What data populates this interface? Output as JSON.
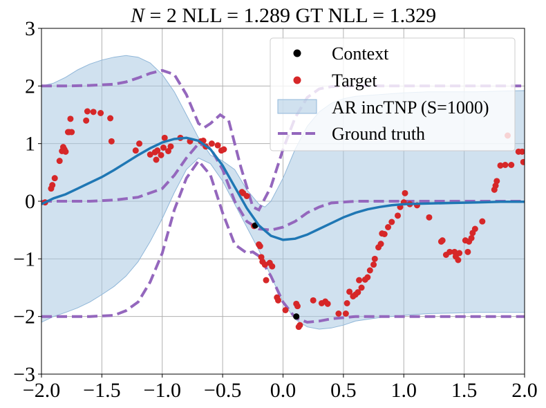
{
  "chart_data": {
    "type": "line",
    "title": {
      "prefix": "N",
      "equals": " = 2 NLL = 1.289 GT NLL = 1.329"
    },
    "xlabel": "",
    "ylabel": "",
    "xlim": [
      -2.0,
      2.0
    ],
    "ylim": [
      -3,
      3
    ],
    "xticks": [
      -2.0,
      -1.5,
      -1.0,
      -0.5,
      0.0,
      0.5,
      1.0,
      1.5,
      2.0
    ],
    "xtick_labels": [
      "−2.0",
      "−1.5",
      "−1.0",
      "−0.5",
      "0.0",
      "0.5",
      "1.0",
      "1.5",
      "2.0"
    ],
    "yticks": [
      -3,
      -2,
      -1,
      0,
      1,
      2,
      3
    ],
    "ytick_labels": [
      "−3",
      "−2",
      "−1",
      "0",
      "1",
      "2",
      "3"
    ],
    "grid": true,
    "legend_position": "top-right",
    "legend": [
      "Context",
      "Target",
      "AR incTNP (S=1000)",
      "Ground truth"
    ],
    "colors": {
      "context": "#000000",
      "target": "#d62728",
      "band_fill": "#aac8e2",
      "band_edge": "#8fb6d8",
      "mean": "#1f77b4",
      "ground_truth": "#9467bd",
      "grid": "#b0b0b0"
    },
    "context_points": [
      {
        "x": -0.23,
        "y": -0.42
      },
      {
        "x": 0.11,
        "y": -2.0
      }
    ],
    "target_points": [
      {
        "x": -1.97,
        "y": -0.02
      },
      {
        "x": -1.92,
        "y": 0.22
      },
      {
        "x": -1.91,
        "y": 0.28
      },
      {
        "x": -1.89,
        "y": 0.4
      },
      {
        "x": -1.85,
        "y": 0.7
      },
      {
        "x": -1.83,
        "y": 0.87
      },
      {
        "x": -1.82,
        "y": 0.94
      },
      {
        "x": -1.81,
        "y": 0.9
      },
      {
        "x": -1.8,
        "y": 0.86
      },
      {
        "x": -1.78,
        "y": 1.2
      },
      {
        "x": -1.77,
        "y": 1.2
      },
      {
        "x": -1.76,
        "y": 1.43
      },
      {
        "x": -1.75,
        "y": 1.2
      },
      {
        "x": -1.63,
        "y": 1.4
      },
      {
        "x": -1.62,
        "y": 1.56
      },
      {
        "x": -1.57,
        "y": 1.55
      },
      {
        "x": -1.51,
        "y": 1.53
      },
      {
        "x": -1.43,
        "y": 1.44
      },
      {
        "x": -1.42,
        "y": 1.04
      },
      {
        "x": -1.22,
        "y": 0.88
      },
      {
        "x": -1.19,
        "y": 1.0
      },
      {
        "x": -1.1,
        "y": 0.81
      },
      {
        "x": -1.06,
        "y": 0.85
      },
      {
        "x": -1.05,
        "y": 0.72
      },
      {
        "x": -1.04,
        "y": 0.88
      },
      {
        "x": -1.01,
        "y": 0.8
      },
      {
        "x": -0.99,
        "y": 0.93
      },
      {
        "x": -0.98,
        "y": 1.1
      },
      {
        "x": -0.95,
        "y": 0.87
      },
      {
        "x": -0.93,
        "y": 0.95
      },
      {
        "x": -0.85,
        "y": 1.1
      },
      {
        "x": -0.77,
        "y": 1.04
      },
      {
        "x": -0.68,
        "y": 1.04
      },
      {
        "x": -0.66,
        "y": 1.05
      },
      {
        "x": -0.64,
        "y": 0.95
      },
      {
        "x": -0.59,
        "y": 1.0
      },
      {
        "x": -0.54,
        "y": 0.97
      },
      {
        "x": -0.51,
        "y": 0.88
      },
      {
        "x": -0.49,
        "y": 0.9
      },
      {
        "x": -0.34,
        "y": 0.16
      },
      {
        "x": -0.33,
        "y": 0.14
      },
      {
        "x": -0.3,
        "y": 0.09
      },
      {
        "x": -0.24,
        "y": -0.43
      },
      {
        "x": -0.2,
        "y": -0.75
      },
      {
        "x": -0.19,
        "y": -0.78
      },
      {
        "x": -0.18,
        "y": -0.97
      },
      {
        "x": -0.17,
        "y": -1.05
      },
      {
        "x": -0.15,
        "y": -1.1
      },
      {
        "x": -0.14,
        "y": -1.37
      },
      {
        "x": -0.11,
        "y": -1.07
      },
      {
        "x": -0.09,
        "y": -1.13
      },
      {
        "x": -0.05,
        "y": -1.67
      },
      {
        "x": -0.04,
        "y": -1.72
      },
      {
        "x": 0.02,
        "y": -1.89
      },
      {
        "x": 0.11,
        "y": -1.78
      },
      {
        "x": 0.12,
        "y": -1.82
      },
      {
        "x": 0.13,
        "y": -2.18
      },
      {
        "x": 0.14,
        "y": -2.15
      },
      {
        "x": 0.25,
        "y": -1.72
      },
      {
        "x": 0.32,
        "y": -1.77
      },
      {
        "x": 0.35,
        "y": -1.74
      },
      {
        "x": 0.37,
        "y": -1.78
      },
      {
        "x": 0.46,
        "y": -1.95
      },
      {
        "x": 0.52,
        "y": -1.95
      },
      {
        "x": 0.53,
        "y": -1.77
      },
      {
        "x": 0.55,
        "y": -1.57
      },
      {
        "x": 0.58,
        "y": -1.65
      },
      {
        "x": 0.6,
        "y": -1.62
      },
      {
        "x": 0.62,
        "y": -1.58
      },
      {
        "x": 0.63,
        "y": -1.37
      },
      {
        "x": 0.65,
        "y": -1.5
      },
      {
        "x": 0.68,
        "y": -1.36
      },
      {
        "x": 0.7,
        "y": -1.32
      },
      {
        "x": 0.72,
        "y": -1.2
      },
      {
        "x": 0.75,
        "y": -1.1
      },
      {
        "x": 0.76,
        "y": -1.0
      },
      {
        "x": 0.79,
        "y": -0.8
      },
      {
        "x": 0.81,
        "y": -0.74
      },
      {
        "x": 0.82,
        "y": -0.56
      },
      {
        "x": 0.84,
        "y": -0.57
      },
      {
        "x": 0.87,
        "y": -0.45
      },
      {
        "x": 0.9,
        "y": -0.36
      },
      {
        "x": 0.95,
        "y": -0.25
      },
      {
        "x": 0.97,
        "y": -0.1
      },
      {
        "x": 1.0,
        "y": -0.02
      },
      {
        "x": 1.01,
        "y": 0.14
      },
      {
        "x": 1.05,
        "y": -0.05
      },
      {
        "x": 1.11,
        "y": -0.07
      },
      {
        "x": 1.21,
        "y": -0.28
      },
      {
        "x": 1.31,
        "y": -0.7
      },
      {
        "x": 1.32,
        "y": -0.68
      },
      {
        "x": 1.35,
        "y": -0.93
      },
      {
        "x": 1.38,
        "y": -0.88
      },
      {
        "x": 1.42,
        "y": -0.88
      },
      {
        "x": 1.43,
        "y": -0.96
      },
      {
        "x": 1.45,
        "y": -1.02
      },
      {
        "x": 1.46,
        "y": -0.9
      },
      {
        "x": 1.51,
        "y": -0.68
      },
      {
        "x": 1.53,
        "y": -0.88
      },
      {
        "x": 1.54,
        "y": -0.7
      },
      {
        "x": 1.56,
        "y": -0.64
      },
      {
        "x": 1.57,
        "y": -0.55
      },
      {
        "x": 1.59,
        "y": -0.48
      },
      {
        "x": 1.65,
        "y": -0.35
      },
      {
        "x": 1.75,
        "y": 0.2
      },
      {
        "x": 1.76,
        "y": 0.27
      },
      {
        "x": 1.77,
        "y": 0.35
      },
      {
        "x": 1.8,
        "y": 0.62
      },
      {
        "x": 1.84,
        "y": 0.63
      },
      {
        "x": 1.86,
        "y": 1.14
      },
      {
        "x": 1.89,
        "y": 0.63
      },
      {
        "x": 1.95,
        "y": 0.86
      },
      {
        "x": 1.98,
        "y": 0.86
      },
      {
        "x": 1.99,
        "y": 0.68
      }
    ],
    "mean_curve": [
      {
        "x": -2.0,
        "y": -0.05
      },
      {
        "x": -1.9,
        "y": 0.05
      },
      {
        "x": -1.8,
        "y": 0.12
      },
      {
        "x": -1.7,
        "y": 0.22
      },
      {
        "x": -1.6,
        "y": 0.32
      },
      {
        "x": -1.5,
        "y": 0.42
      },
      {
        "x": -1.4,
        "y": 0.54
      },
      {
        "x": -1.3,
        "y": 0.67
      },
      {
        "x": -1.2,
        "y": 0.8
      },
      {
        "x": -1.1,
        "y": 0.92
      },
      {
        "x": -1.0,
        "y": 1.02
      },
      {
        "x": -0.9,
        "y": 1.08
      },
      {
        "x": -0.8,
        "y": 1.1
      },
      {
        "x": -0.7,
        "y": 1.05
      },
      {
        "x": -0.6,
        "y": 0.9
      },
      {
        "x": -0.5,
        "y": 0.62
      },
      {
        "x": -0.4,
        "y": 0.25
      },
      {
        "x": -0.3,
        "y": -0.12
      },
      {
        "x": -0.2,
        "y": -0.42
      },
      {
        "x": -0.1,
        "y": -0.6
      },
      {
        "x": 0.0,
        "y": -0.67
      },
      {
        "x": 0.1,
        "y": -0.65
      },
      {
        "x": 0.2,
        "y": -0.58
      },
      {
        "x": 0.3,
        "y": -0.48
      },
      {
        "x": 0.4,
        "y": -0.38
      },
      {
        "x": 0.5,
        "y": -0.28
      },
      {
        "x": 0.6,
        "y": -0.2
      },
      {
        "x": 0.7,
        "y": -0.14
      },
      {
        "x": 0.8,
        "y": -0.1
      },
      {
        "x": 0.9,
        "y": -0.07
      },
      {
        "x": 1.0,
        "y": -0.05
      },
      {
        "x": 1.2,
        "y": -0.04
      },
      {
        "x": 1.4,
        "y": -0.03
      },
      {
        "x": 1.6,
        "y": -0.02
      },
      {
        "x": 1.8,
        "y": -0.01
      },
      {
        "x": 2.0,
        "y": -0.01
      }
    ],
    "band_upper": [
      {
        "x": -2.0,
        "y": 2.0
      },
      {
        "x": -1.9,
        "y": 2.05
      },
      {
        "x": -1.8,
        "y": 2.15
      },
      {
        "x": -1.7,
        "y": 2.28
      },
      {
        "x": -1.6,
        "y": 2.38
      },
      {
        "x": -1.5,
        "y": 2.45
      },
      {
        "x": -1.4,
        "y": 2.5
      },
      {
        "x": -1.3,
        "y": 2.53
      },
      {
        "x": -1.2,
        "y": 2.5
      },
      {
        "x": -1.1,
        "y": 2.4
      },
      {
        "x": -1.0,
        "y": 2.2
      },
      {
        "x": -0.9,
        "y": 1.9
      },
      {
        "x": -0.8,
        "y": 1.5
      },
      {
        "x": -0.7,
        "y": 1.1
      },
      {
        "x": -0.6,
        "y": 0.8
      },
      {
        "x": -0.5,
        "y": 0.7
      },
      {
        "x": -0.4,
        "y": 0.55
      },
      {
        "x": -0.3,
        "y": 0.2
      },
      {
        "x": -0.2,
        "y": -0.05
      },
      {
        "x": -0.15,
        "y": -0.1
      },
      {
        "x": -0.1,
        "y": 0.0
      },
      {
        "x": 0.0,
        "y": 0.4
      },
      {
        "x": 0.1,
        "y": 0.9
      },
      {
        "x": 0.2,
        "y": 1.3
      },
      {
        "x": 0.3,
        "y": 1.55
      },
      {
        "x": 0.4,
        "y": 1.7
      },
      {
        "x": 0.5,
        "y": 1.78
      },
      {
        "x": 0.6,
        "y": 1.82
      },
      {
        "x": 0.8,
        "y": 1.85
      },
      {
        "x": 1.0,
        "y": 1.88
      },
      {
        "x": 1.2,
        "y": 1.9
      },
      {
        "x": 1.4,
        "y": 1.9
      },
      {
        "x": 1.6,
        "y": 1.9
      },
      {
        "x": 1.8,
        "y": 1.91
      },
      {
        "x": 2.0,
        "y": 1.92
      }
    ],
    "band_lower": [
      {
        "x": -2.0,
        "y": -2.1
      },
      {
        "x": -1.9,
        "y": -2.0
      },
      {
        "x": -1.8,
        "y": -1.93
      },
      {
        "x": -1.7,
        "y": -1.85
      },
      {
        "x": -1.6,
        "y": -1.75
      },
      {
        "x": -1.5,
        "y": -1.62
      },
      {
        "x": -1.4,
        "y": -1.48
      },
      {
        "x": -1.3,
        "y": -1.3
      },
      {
        "x": -1.2,
        "y": -1.05
      },
      {
        "x": -1.1,
        "y": -0.7
      },
      {
        "x": -1.0,
        "y": -0.3
      },
      {
        "x": -0.9,
        "y": 0.15
      },
      {
        "x": -0.8,
        "y": 0.55
      },
      {
        "x": -0.7,
        "y": 0.75
      },
      {
        "x": -0.6,
        "y": 0.65
      },
      {
        "x": -0.5,
        "y": 0.35
      },
      {
        "x": -0.4,
        "y": -0.05
      },
      {
        "x": -0.3,
        "y": -0.45
      },
      {
        "x": -0.2,
        "y": -0.85
      },
      {
        "x": -0.1,
        "y": -1.3
      },
      {
        "x": 0.0,
        "y": -1.75
      },
      {
        "x": 0.1,
        "y": -2.05
      },
      {
        "x": 0.2,
        "y": -2.18
      },
      {
        "x": 0.3,
        "y": -2.22
      },
      {
        "x": 0.4,
        "y": -2.2
      },
      {
        "x": 0.5,
        "y": -2.15
      },
      {
        "x": 0.6,
        "y": -2.08
      },
      {
        "x": 0.8,
        "y": -2.02
      },
      {
        "x": 1.0,
        "y": -1.98
      },
      {
        "x": 1.2,
        "y": -1.95
      },
      {
        "x": 1.4,
        "y": -1.94
      },
      {
        "x": 1.6,
        "y": -1.93
      },
      {
        "x": 1.8,
        "y": -1.93
      },
      {
        "x": 2.0,
        "y": -1.93
      }
    ],
    "ground_truth_upper": [
      {
        "x": -2.0,
        "y": 2.0
      },
      {
        "x": -1.8,
        "y": 2.0
      },
      {
        "x": -1.6,
        "y": 2.01
      },
      {
        "x": -1.4,
        "y": 2.03
      },
      {
        "x": -1.3,
        "y": 2.07
      },
      {
        "x": -1.2,
        "y": 2.14
      },
      {
        "x": -1.1,
        "y": 2.22
      },
      {
        "x": -1.0,
        "y": 2.27
      },
      {
        "x": -0.9,
        "y": 2.2
      },
      {
        "x": -0.8,
        "y": 1.85
      },
      {
        "x": -0.7,
        "y": 1.35
      },
      {
        "x": -0.65,
        "y": 1.28
      },
      {
        "x": -0.6,
        "y": 1.35
      },
      {
        "x": -0.52,
        "y": 1.5
      },
      {
        "x": -0.45,
        "y": 1.4
      },
      {
        "x": -0.35,
        "y": 0.6
      },
      {
        "x": -0.25,
        "y": -0.1
      },
      {
        "x": -0.2,
        "y": -0.15
      },
      {
        "x": -0.1,
        "y": 0.25
      },
      {
        "x": 0.0,
        "y": 0.9
      },
      {
        "x": 0.1,
        "y": 1.45
      },
      {
        "x": 0.2,
        "y": 1.8
      },
      {
        "x": 0.3,
        "y": 1.95
      },
      {
        "x": 0.4,
        "y": 1.99
      },
      {
        "x": 0.6,
        "y": 2.0
      },
      {
        "x": 1.0,
        "y": 2.0
      },
      {
        "x": 1.5,
        "y": 2.0
      },
      {
        "x": 2.0,
        "y": 2.0
      }
    ],
    "ground_truth_mean": [
      {
        "x": -2.0,
        "y": 0.0
      },
      {
        "x": -1.6,
        "y": 0.0
      },
      {
        "x": -1.4,
        "y": 0.02
      },
      {
        "x": -1.2,
        "y": 0.07
      },
      {
        "x": -1.0,
        "y": 0.22
      },
      {
        "x": -0.9,
        "y": 0.45
      },
      {
        "x": -0.8,
        "y": 0.75
      },
      {
        "x": -0.7,
        "y": 1.0
      },
      {
        "x": -0.6,
        "y": 0.92
      },
      {
        "x": -0.5,
        "y": 0.55
      },
      {
        "x": -0.4,
        "y": 0.0
      },
      {
        "x": -0.3,
        "y": -0.35
      },
      {
        "x": -0.2,
        "y": -0.48
      },
      {
        "x": -0.1,
        "y": -0.5
      },
      {
        "x": 0.0,
        "y": -0.45
      },
      {
        "x": 0.1,
        "y": -0.35
      },
      {
        "x": 0.2,
        "y": -0.2
      },
      {
        "x": 0.3,
        "y": -0.1
      },
      {
        "x": 0.4,
        "y": -0.03
      },
      {
        "x": 0.6,
        "y": 0.0
      },
      {
        "x": 1.0,
        "y": 0.0
      },
      {
        "x": 1.5,
        "y": 0.0
      },
      {
        "x": 2.0,
        "y": 0.0
      }
    ],
    "ground_truth_lower": [
      {
        "x": -2.0,
        "y": -2.0
      },
      {
        "x": -1.6,
        "y": -2.0
      },
      {
        "x": -1.4,
        "y": -1.98
      },
      {
        "x": -1.3,
        "y": -1.9
      },
      {
        "x": -1.2,
        "y": -1.75
      },
      {
        "x": -1.1,
        "y": -1.4
      },
      {
        "x": -1.0,
        "y": -0.9
      },
      {
        "x": -0.9,
        "y": -0.15
      },
      {
        "x": -0.8,
        "y": 0.4
      },
      {
        "x": -0.7,
        "y": 0.7
      },
      {
        "x": -0.6,
        "y": 0.45
      },
      {
        "x": -0.5,
        "y": -0.2
      },
      {
        "x": -0.4,
        "y": -0.75
      },
      {
        "x": -0.3,
        "y": -0.9
      },
      {
        "x": -0.25,
        "y": -0.88
      },
      {
        "x": -0.2,
        "y": -0.95
      },
      {
        "x": -0.1,
        "y": -1.3
      },
      {
        "x": 0.0,
        "y": -1.75
      },
      {
        "x": 0.1,
        "y": -2.02
      },
      {
        "x": 0.2,
        "y": -2.1
      },
      {
        "x": 0.3,
        "y": -2.08
      },
      {
        "x": 0.4,
        "y": -2.04
      },
      {
        "x": 0.6,
        "y": -2.0
      },
      {
        "x": 1.0,
        "y": -2.0
      },
      {
        "x": 1.5,
        "y": -2.0
      },
      {
        "x": 2.0,
        "y": -2.0
      }
    ]
  }
}
